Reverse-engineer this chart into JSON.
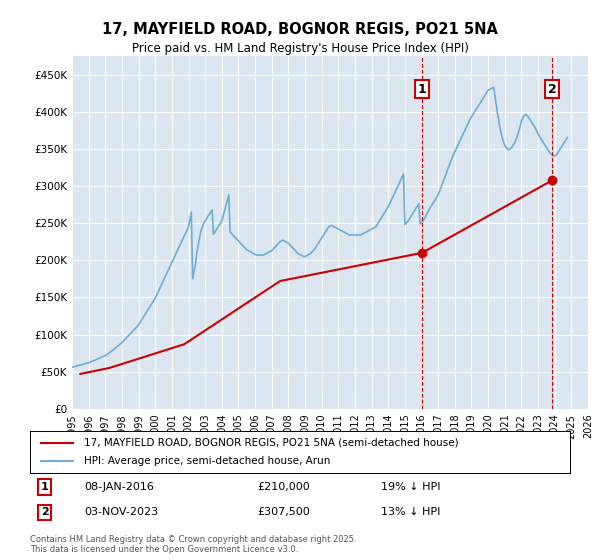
{
  "title": "17, MAYFIELD ROAD, BOGNOR REGIS, PO21 5NA",
  "subtitle": "Price paid vs. HM Land Registry's House Price Index (HPI)",
  "background_color": "#dce6f1",
  "plot_bg_color": "#dce6f1",
  "hpi_color": "#6baed6",
  "price_color": "#cc0000",
  "marker1_date_x": 2016.03,
  "marker2_date_x": 2023.84,
  "marker1_label": "1",
  "marker2_label": "2",
  "marker1_info": "08-JAN-2016    £210,000    19% ↓ HPI",
  "marker2_info": "03-NOV-2023    £307,500    13% ↓ HPI",
  "legend1": "17, MAYFIELD ROAD, BOGNOR REGIS, PO21 5NA (semi-detached house)",
  "legend2": "HPI: Average price, semi-detached house, Arun",
  "footer": "Contains HM Land Registry data © Crown copyright and database right 2025.\nThis data is licensed under the Open Government Licence v3.0.",
  "ylim": [
    0,
    475000
  ],
  "xlim_start": 1995,
  "xlim_end": 2026,
  "yticks": [
    0,
    50000,
    100000,
    150000,
    200000,
    250000,
    300000,
    350000,
    400000,
    450000
  ],
  "ytick_labels": [
    "£0",
    "£50K",
    "£100K",
    "£150K",
    "£200K",
    "£250K",
    "£300K",
    "£350K",
    "£400K",
    "£450K"
  ],
  "xtick_years": [
    1995,
    1996,
    1997,
    1998,
    1999,
    2000,
    2001,
    2002,
    2003,
    2004,
    2005,
    2006,
    2007,
    2008,
    2009,
    2010,
    2011,
    2012,
    2013,
    2014,
    2015,
    2016,
    2017,
    2018,
    2019,
    2020,
    2021,
    2022,
    2023,
    2024,
    2025,
    2026
  ],
  "hpi_x": [
    1995.0,
    1995.083,
    1995.167,
    1995.25,
    1995.333,
    1995.417,
    1995.5,
    1995.583,
    1995.667,
    1995.75,
    1995.833,
    1995.917,
    1996.0,
    1996.083,
    1996.167,
    1996.25,
    1996.333,
    1996.417,
    1996.5,
    1996.583,
    1996.667,
    1996.75,
    1996.833,
    1996.917,
    1997.0,
    1997.083,
    1997.167,
    1997.25,
    1997.333,
    1997.417,
    1997.5,
    1997.583,
    1997.667,
    1997.75,
    1997.833,
    1997.917,
    1998.0,
    1998.083,
    1998.167,
    1998.25,
    1998.333,
    1998.417,
    1998.5,
    1998.583,
    1998.667,
    1998.75,
    1998.833,
    1998.917,
    1999.0,
    1999.083,
    1999.167,
    1999.25,
    1999.333,
    1999.417,
    1999.5,
    1999.583,
    1999.667,
    1999.75,
    1999.833,
    1999.917,
    2000.0,
    2000.083,
    2000.167,
    2000.25,
    2000.333,
    2000.417,
    2000.5,
    2000.583,
    2000.667,
    2000.75,
    2000.833,
    2000.917,
    2001.0,
    2001.083,
    2001.167,
    2001.25,
    2001.333,
    2001.417,
    2001.5,
    2001.583,
    2001.667,
    2001.75,
    2001.833,
    2001.917,
    2002.0,
    2002.083,
    2002.167,
    2002.25,
    2002.333,
    2002.417,
    2002.5,
    2002.583,
    2002.667,
    2002.75,
    2002.833,
    2002.917,
    2003.0,
    2003.083,
    2003.167,
    2003.25,
    2003.333,
    2003.417,
    2003.5,
    2003.583,
    2003.667,
    2003.75,
    2003.833,
    2003.917,
    2004.0,
    2004.083,
    2004.167,
    2004.25,
    2004.333,
    2004.417,
    2004.5,
    2004.583,
    2004.667,
    2004.75,
    2004.833,
    2004.917,
    2005.0,
    2005.083,
    2005.167,
    2005.25,
    2005.333,
    2005.417,
    2005.5,
    2005.583,
    2005.667,
    2005.75,
    2005.833,
    2005.917,
    2006.0,
    2006.083,
    2006.167,
    2006.25,
    2006.333,
    2006.417,
    2006.5,
    2006.583,
    2006.667,
    2006.75,
    2006.833,
    2006.917,
    2007.0,
    2007.083,
    2007.167,
    2007.25,
    2007.333,
    2007.417,
    2007.5,
    2007.583,
    2007.667,
    2007.75,
    2007.833,
    2007.917,
    2008.0,
    2008.083,
    2008.167,
    2008.25,
    2008.333,
    2008.417,
    2008.5,
    2008.583,
    2008.667,
    2008.75,
    2008.833,
    2008.917,
    2009.0,
    2009.083,
    2009.167,
    2009.25,
    2009.333,
    2009.417,
    2009.5,
    2009.583,
    2009.667,
    2009.75,
    2009.833,
    2009.917,
    2010.0,
    2010.083,
    2010.167,
    2010.25,
    2010.333,
    2010.417,
    2010.5,
    2010.583,
    2010.667,
    2010.75,
    2010.833,
    2010.917,
    2011.0,
    2011.083,
    2011.167,
    2011.25,
    2011.333,
    2011.417,
    2011.5,
    2011.583,
    2011.667,
    2011.75,
    2011.833,
    2011.917,
    2012.0,
    2012.083,
    2012.167,
    2012.25,
    2012.333,
    2012.417,
    2012.5,
    2012.583,
    2012.667,
    2012.75,
    2012.833,
    2012.917,
    2013.0,
    2013.083,
    2013.167,
    2013.25,
    2013.333,
    2013.417,
    2013.5,
    2013.583,
    2013.667,
    2013.75,
    2013.833,
    2013.917,
    2014.0,
    2014.083,
    2014.167,
    2014.25,
    2014.333,
    2014.417,
    2014.5,
    2014.583,
    2014.667,
    2014.75,
    2014.833,
    2014.917,
    2015.0,
    2015.083,
    2015.167,
    2015.25,
    2015.333,
    2015.417,
    2015.5,
    2015.583,
    2015.667,
    2015.75,
    2015.833,
    2015.917,
    2016.0,
    2016.083,
    2016.167,
    2016.25,
    2016.333,
    2016.417,
    2016.5,
    2016.583,
    2016.667,
    2016.75,
    2016.833,
    2016.917,
    2017.0,
    2017.083,
    2017.167,
    2017.25,
    2017.333,
    2017.417,
    2017.5,
    2017.583,
    2017.667,
    2017.75,
    2017.833,
    2017.917,
    2018.0,
    2018.083,
    2018.167,
    2018.25,
    2018.333,
    2018.417,
    2018.5,
    2018.583,
    2018.667,
    2018.75,
    2018.833,
    2018.917,
    2019.0,
    2019.083,
    2019.167,
    2019.25,
    2019.333,
    2019.417,
    2019.5,
    2019.583,
    2019.667,
    2019.75,
    2019.833,
    2019.917,
    2020.0,
    2020.083,
    2020.167,
    2020.25,
    2020.333,
    2020.417,
    2020.5,
    2020.583,
    2020.667,
    2020.75,
    2020.833,
    2020.917,
    2021.0,
    2021.083,
    2021.167,
    2021.25,
    2021.333,
    2021.417,
    2021.5,
    2021.583,
    2021.667,
    2021.75,
    2021.833,
    2021.917,
    2022.0,
    2022.083,
    2022.167,
    2022.25,
    2022.333,
    2022.417,
    2022.5,
    2022.583,
    2022.667,
    2022.75,
    2022.833,
    2022.917,
    2023.0,
    2023.083,
    2023.167,
    2023.25,
    2023.333,
    2023.417,
    2023.5,
    2023.583,
    2023.667,
    2023.75,
    2023.833,
    2023.917,
    2024.0,
    2024.083,
    2024.167,
    2024.25,
    2024.333,
    2024.417,
    2024.5,
    2024.583,
    2024.667,
    2024.75
  ],
  "hpi_y": [
    56000,
    56500,
    57000,
    57500,
    58000,
    58500,
    59000,
    59500,
    60000,
    60500,
    61000,
    61500,
    62000,
    62800,
    63600,
    64400,
    65200,
    66000,
    66800,
    67600,
    68400,
    69200,
    70000,
    70800,
    71600,
    72800,
    74000,
    75500,
    77000,
    78500,
    80000,
    81500,
    83000,
    84500,
    86000,
    87500,
    89000,
    91000,
    93000,
    95000,
    97000,
    99000,
    101000,
    103000,
    105000,
    107000,
    109000,
    111000,
    113000,
    116000,
    119000,
    122000,
    125000,
    128000,
    131000,
    134000,
    137000,
    140000,
    143000,
    146000,
    149000,
    153000,
    157000,
    161000,
    165000,
    169000,
    173000,
    177000,
    181000,
    185000,
    189000,
    193000,
    197000,
    201000,
    205000,
    209000,
    213000,
    217000,
    221000,
    225000,
    229000,
    233000,
    237000,
    241000,
    245000,
    255000,
    265000,
    175000,
    185000,
    195000,
    210000,
    220000,
    230000,
    240000,
    245000,
    250000,
    253000,
    256000,
    259000,
    262000,
    265000,
    268000,
    235000,
    238000,
    241000,
    244000,
    247000,
    250000,
    253000,
    260000,
    267000,
    274000,
    281000,
    288000,
    238000,
    236000,
    234000,
    232000,
    230000,
    228000,
    226000,
    224000,
    222000,
    220000,
    218000,
    216000,
    214000,
    213000,
    212000,
    211000,
    210000,
    209000,
    208000,
    207000,
    207000,
    207000,
    207000,
    207000,
    207000,
    208000,
    209000,
    210000,
    211000,
    212000,
    213000,
    215000,
    217000,
    219000,
    221000,
    223000,
    225000,
    226000,
    227000,
    226000,
    225000,
    224000,
    223000,
    221000,
    219000,
    217000,
    215000,
    213000,
    211000,
    209000,
    208000,
    207000,
    206000,
    205000,
    205000,
    206000,
    207000,
    208000,
    209000,
    211000,
    213000,
    215000,
    218000,
    221000,
    224000,
    227000,
    230000,
    233000,
    236000,
    239000,
    242000,
    245000,
    246000,
    247000,
    246000,
    245000,
    244000,
    243000,
    242000,
    241000,
    240000,
    239000,
    238000,
    237000,
    236000,
    235000,
    234000,
    234000,
    234000,
    234000,
    234000,
    234000,
    234000,
    234000,
    234000,
    235000,
    236000,
    237000,
    238000,
    239000,
    240000,
    241000,
    242000,
    243000,
    244000,
    245000,
    248000,
    251000,
    254000,
    257000,
    260000,
    263000,
    266000,
    269000,
    272000,
    276000,
    280000,
    284000,
    288000,
    292000,
    296000,
    300000,
    304000,
    308000,
    312000,
    316000,
    248000,
    250000,
    252000,
    255000,
    258000,
    261000,
    264000,
    267000,
    270000,
    273000,
    276000,
    249000,
    251000,
    253000,
    256000,
    259000,
    263000,
    267000,
    270000,
    273000,
    276000,
    279000,
    282000,
    285000,
    289000,
    293000,
    298000,
    303000,
    308000,
    313000,
    318000,
    323000,
    328000,
    333000,
    338000,
    342000,
    346000,
    350000,
    354000,
    358000,
    362000,
    366000,
    370000,
    374000,
    378000,
    382000,
    386000,
    390000,
    393000,
    396000,
    399000,
    402000,
    405000,
    408000,
    411000,
    414000,
    417000,
    420000,
    423000,
    426000,
    429000,
    430000,
    431000,
    432000,
    433000,
    420000,
    407000,
    395000,
    384000,
    374000,
    366000,
    360000,
    355000,
    352000,
    350000,
    349000,
    350000,
    352000,
    355000,
    358000,
    362000,
    367000,
    373000,
    380000,
    387000,
    392000,
    395000,
    396000,
    395000,
    393000,
    390000,
    387000,
    384000,
    381000,
    378000,
    374000,
    370000,
    367000,
    364000,
    361000,
    358000,
    355000,
    352000,
    349000,
    346000,
    344000,
    342000,
    341000,
    340000,
    342000,
    344000,
    347000,
    350000,
    353000,
    356000,
    359000,
    362000,
    365000
  ],
  "price_x": [
    1995.5,
    1997.25,
    2001.75,
    2007.5,
    2016.03,
    2023.84
  ],
  "price_y": [
    47000,
    55000,
    87000,
    172000,
    210000,
    307500
  ]
}
